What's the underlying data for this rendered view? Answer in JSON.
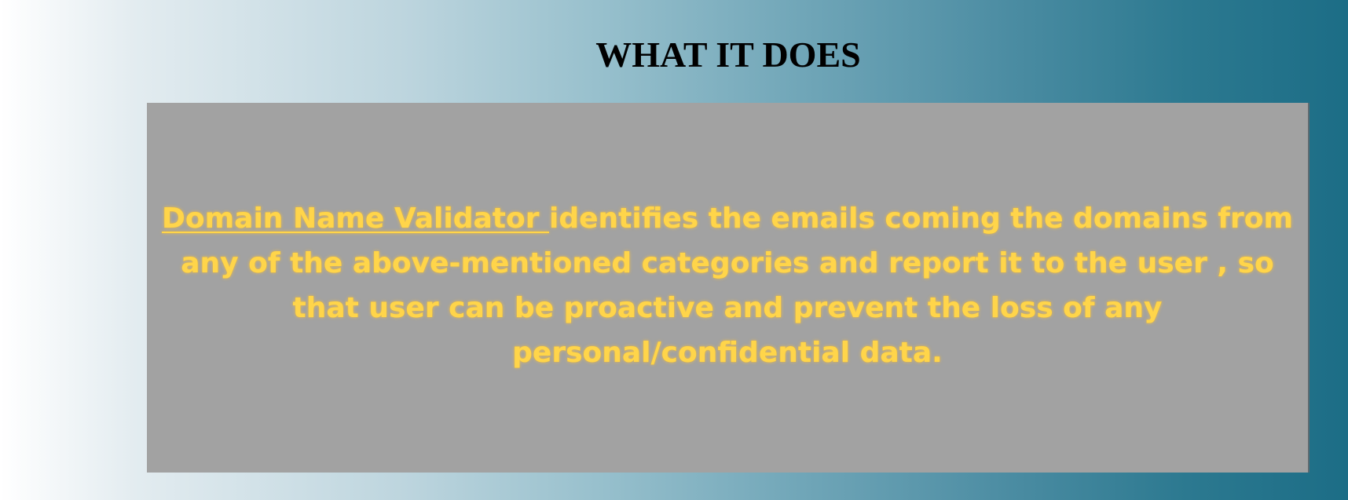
{
  "slide": {
    "title": "WHAT IT DOES",
    "body": {
      "product_name": "Domain Name Validator ",
      "description": "identifies the emails coming the domains from any of the above-mentioned categories and report it to the user , so that user can be proactive and prevent  the loss of any personal/confidential data."
    }
  },
  "colors": {
    "title": "#000000",
    "panel_background": "#a2a2a2",
    "body_text": "#ffd54a",
    "background_gradient_start": "#ffffff",
    "background_gradient_end": "#1c6d86"
  }
}
